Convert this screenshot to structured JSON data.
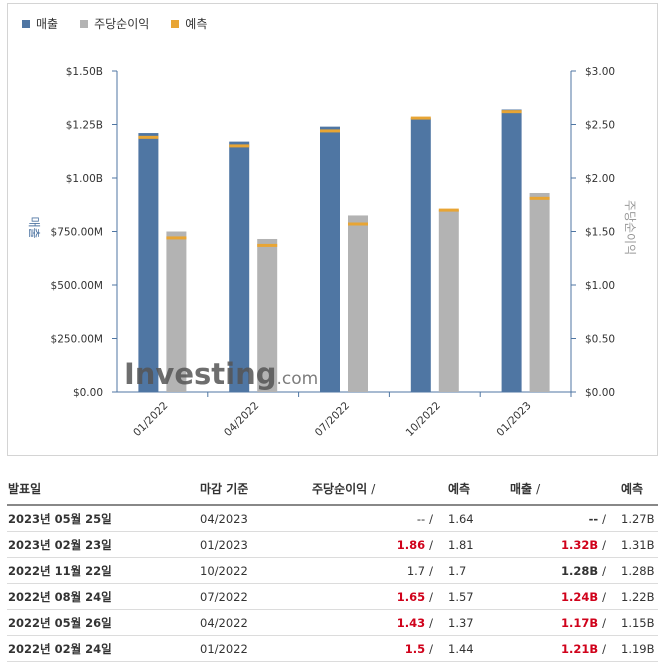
{
  "legend": [
    {
      "label": "매출",
      "color": "#4f76a3"
    },
    {
      "label": "주당순이익",
      "color": "#b3b3b3"
    },
    {
      "label": "예측",
      "color": "#e8a534"
    }
  ],
  "chart_data": {
    "type": "bar",
    "categories": [
      "01/2022",
      "04/2022",
      "07/2022",
      "10/2022",
      "01/2023"
    ],
    "series": [
      {
        "name": "매출",
        "axis": "left",
        "color": "#4f76a3",
        "values": [
          1.21,
          1.17,
          1.24,
          1.28,
          1.32
        ]
      },
      {
        "name": "주당순이익",
        "axis": "right",
        "color": "#b3b3b3",
        "values": [
          1.5,
          1.43,
          1.65,
          1.7,
          1.86
        ]
      }
    ],
    "forecasts": {
      "color": "#e8a534",
      "revenue": [
        1.19,
        1.15,
        1.22,
        1.28,
        1.31
      ],
      "eps": [
        1.44,
        1.37,
        1.57,
        1.7,
        1.81
      ]
    },
    "left_axis": {
      "label": "매출",
      "ticks": [
        "$0.00",
        "$250.00M",
        "$500.00M",
        "$750.00M",
        "$1.00B",
        "$1.25B",
        "$1.50B"
      ],
      "range": [
        0,
        1.5
      ],
      "unit": "B USD"
    },
    "right_axis": {
      "label": "주당순이익",
      "ticks": [
        "$0.00",
        "$0.50",
        "$1.00",
        "$1.50",
        "$2.00",
        "$2.50",
        "$3.00"
      ],
      "range": [
        0,
        3.0
      ]
    },
    "watermark": "Investing.com"
  },
  "table": {
    "headers": {
      "date": "발표일",
      "period": "마감 기준",
      "eps": "주당순이익",
      "eps_sep": "/",
      "eps_fc": "예측",
      "rev": "매출",
      "rev_sep": "/",
      "rev_fc": "예측"
    },
    "rows": [
      {
        "date": "2023년 05월 25일",
        "period": "04/2023",
        "eps": "--",
        "eps_fc": "1.64",
        "rev": "--",
        "rev_fc": "1.27B",
        "eps_hi": false,
        "rev_hi": false
      },
      {
        "date": "2023년 02월 23일",
        "period": "01/2023",
        "eps": "1.86",
        "eps_fc": "1.81",
        "rev": "1.32B",
        "rev_fc": "1.31B",
        "eps_hi": true,
        "rev_hi": true
      },
      {
        "date": "2022년 11월 22일",
        "period": "10/2022",
        "eps": "1.7",
        "eps_fc": "1.7",
        "rev": "1.28B",
        "rev_fc": "1.28B",
        "eps_hi": false,
        "rev_hi": false
      },
      {
        "date": "2022년 08월 24일",
        "period": "07/2022",
        "eps": "1.65",
        "eps_fc": "1.57",
        "rev": "1.24B",
        "rev_fc": "1.22B",
        "eps_hi": true,
        "rev_hi": true
      },
      {
        "date": "2022년 05월 26일",
        "period": "04/2022",
        "eps": "1.43",
        "eps_fc": "1.37",
        "rev": "1.17B",
        "rev_fc": "1.15B",
        "eps_hi": true,
        "rev_hi": true
      },
      {
        "date": "2022년 02월 24일",
        "period": "01/2022",
        "eps": "1.5",
        "eps_fc": "1.44",
        "rev": "1.21B",
        "rev_fc": "1.19B",
        "eps_hi": true,
        "rev_hi": true
      }
    ]
  }
}
